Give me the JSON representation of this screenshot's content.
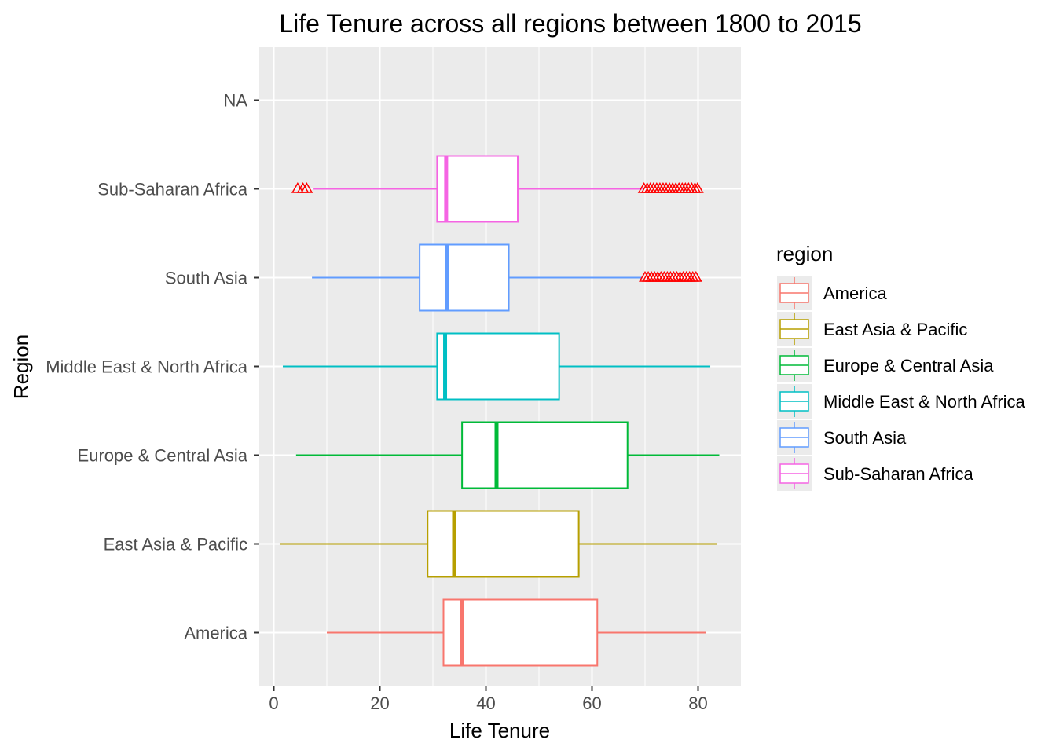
{
  "chart_data": {
    "type": "boxplot",
    "orientation": "horizontal",
    "title": "Life Tenure across all regions between 1800 to 2015",
    "xlabel": "Life Tenure",
    "ylabel": "Region",
    "xlim": [
      -2.5,
      88
    ],
    "x_ticks": [
      0,
      20,
      40,
      60,
      80
    ],
    "x_tick_labels": [
      "0",
      "20",
      "40",
      "60",
      "80"
    ],
    "categories": [
      "America",
      "East Asia & Pacific",
      "Europe & Central Asia",
      "Middle East & North Africa",
      "South Asia",
      "Sub-Saharan Africa",
      "NA"
    ],
    "grid": true,
    "panel_background": "#ebebeb",
    "outlier_color": "#ff0000",
    "outlier_shape": "triangle-open",
    "legend": {
      "title": "region",
      "position": "right"
    },
    "series": [
      {
        "name": "America",
        "color": "#F8766D",
        "min": 10,
        "q1": 32,
        "median": 35.5,
        "q3": 61,
        "max": 81.5,
        "outliers": []
      },
      {
        "name": "East Asia & Pacific",
        "color": "#B79F00",
        "min": 1.2,
        "q1": 29,
        "median": 34,
        "q3": 57.5,
        "max": 83.5,
        "outliers": []
      },
      {
        "name": "Europe & Central Asia",
        "color": "#00BA38",
        "min": 4.2,
        "q1": 35.5,
        "median": 42,
        "q3": 66.7,
        "max": 84,
        "outliers": []
      },
      {
        "name": "Middle East & North Africa",
        "color": "#00BFC4",
        "min": 1.7,
        "q1": 30.8,
        "median": 32.3,
        "q3": 53.8,
        "max": 82.3,
        "outliers": []
      },
      {
        "name": "South Asia",
        "color": "#619CFF",
        "min": 7.2,
        "q1": 27.5,
        "median": 32.7,
        "q3": 44.3,
        "max": 69.5,
        "outliers": [
          70,
          70.6,
          71.2,
          71.8,
          72.4,
          73,
          73.6,
          74.2,
          74.8,
          75.4,
          76,
          76.6,
          77.2,
          77.8,
          78.4,
          79,
          79.6
        ]
      },
      {
        "name": "Sub-Saharan Africa",
        "color": "#F564E3",
        "min": 7.5,
        "q1": 30.8,
        "median": 32.5,
        "q3": 46,
        "max": 69.5,
        "outliers": [
          4.5,
          5.5,
          6.2,
          69.8,
          70.4,
          71,
          71.6,
          72.2,
          72.8,
          73.4,
          74,
          74.6,
          75.2,
          75.8,
          76.4,
          77,
          77.6,
          78.2,
          78.8,
          79.4,
          79.9
        ]
      }
    ]
  }
}
